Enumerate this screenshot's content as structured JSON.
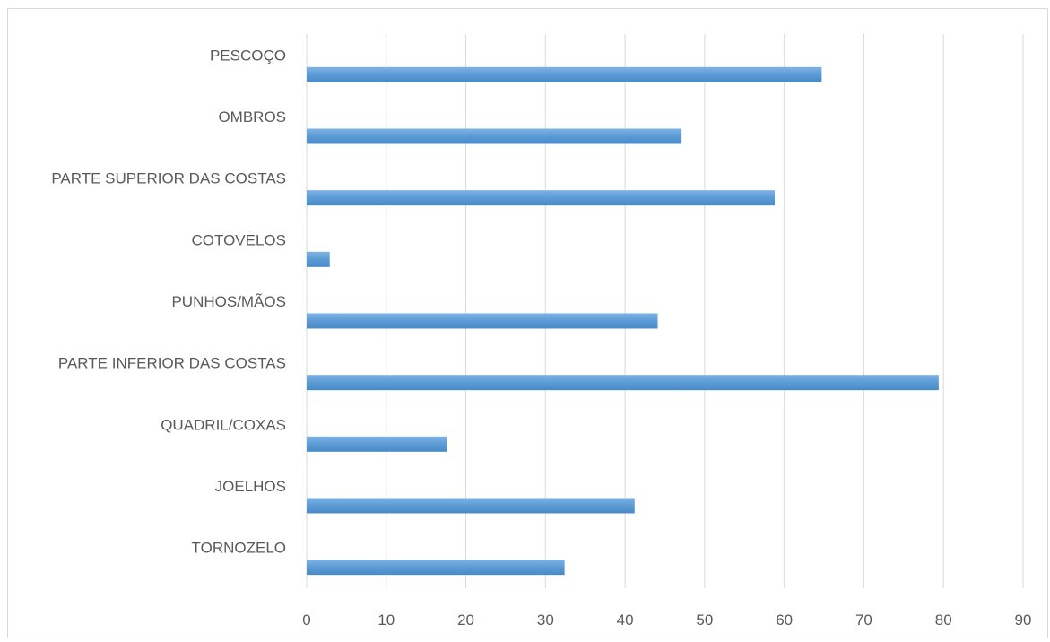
{
  "chart_data": {
    "type": "bar",
    "orientation": "horizontal",
    "categories": [
      "PESCOÇO",
      "OMBROS",
      "PARTE SUPERIOR DAS COSTAS",
      "COTOVELOS",
      "PUNHOS/MÃOS",
      "PARTE INFERIOR DAS COSTAS",
      "QUADRIL/COXAS",
      "JOELHOS",
      "TORNOZELO"
    ],
    "values": [
      64.7,
      47.1,
      58.8,
      2.9,
      44.1,
      79.4,
      17.6,
      41.2,
      32.4
    ],
    "title": "",
    "xlabel": "",
    "ylabel": "",
    "xlim": [
      0,
      90
    ],
    "x_ticks": [
      "0",
      "10",
      "20",
      "30",
      "40",
      "50",
      "60",
      "70",
      "80",
      "90"
    ],
    "grid": "vertical",
    "legend": "none",
    "bar_color": "#5b9bd5"
  }
}
